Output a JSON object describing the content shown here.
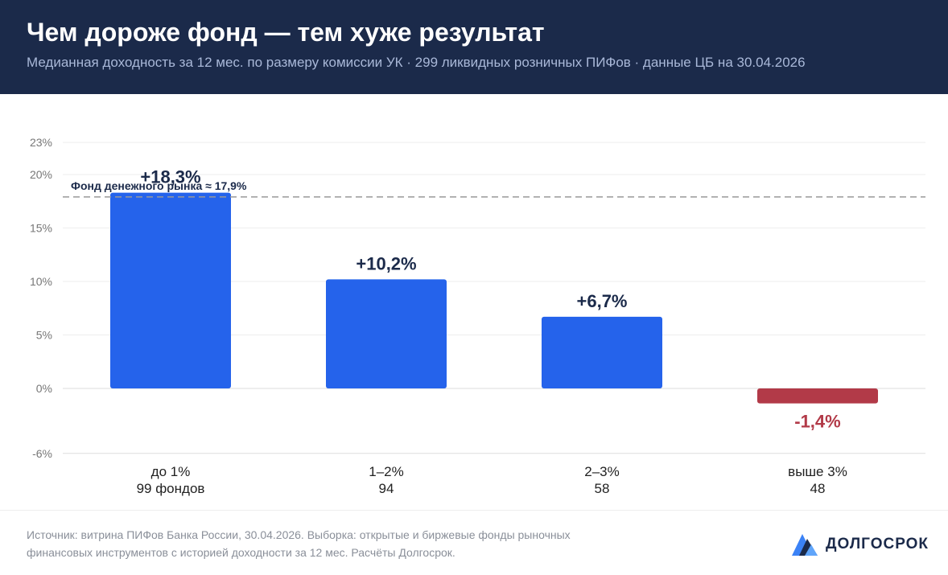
{
  "header": {
    "title": "Чем дороже фонд — тем хуже результат",
    "subtitle": "Медианная доходность за 12 мес. по размеру комиссии УК · 299 ликвидных розничных ПИФов · данные ЦБ на 30.04.2026"
  },
  "chart_data": {
    "type": "bar",
    "categories": [
      "до 1%",
      "1–2%",
      "2–3%",
      "выше 3%"
    ],
    "category_counts": [
      "99 фондов",
      "94",
      "58",
      "48"
    ],
    "values": [
      18.3,
      10.2,
      6.7,
      -1.4
    ],
    "value_labels": [
      "+18,3%",
      "+10,2%",
      "+6,7%",
      "-1,4%"
    ],
    "yticks": [
      -6,
      0,
      5,
      10,
      15,
      20,
      23
    ],
    "ytick_labels": [
      "-6%",
      "0%",
      "5%",
      "10%",
      "15%",
      "20%",
      "23%"
    ],
    "ylim": [
      -6,
      23
    ],
    "grid": true,
    "reference_line": {
      "value": 17.9,
      "label": "Фонд денежного рынка ≈ 17,9%"
    },
    "colors": {
      "positive": "#2563eb",
      "negative": "#b23a48",
      "reference": "#999999",
      "label_dark": "#1b2a4a"
    }
  },
  "footer": {
    "source": "Источник: витрина ПИФов Банка России, 30.04.2026. Выборка: открытые и биржевые фонды рыночных финансовых инструментов с историей доходности за 12 мес. Расчёты Долгосрок.",
    "brand": "ДОЛГОСРОК",
    "brand_logo_icon": "mountain-logo-icon"
  }
}
